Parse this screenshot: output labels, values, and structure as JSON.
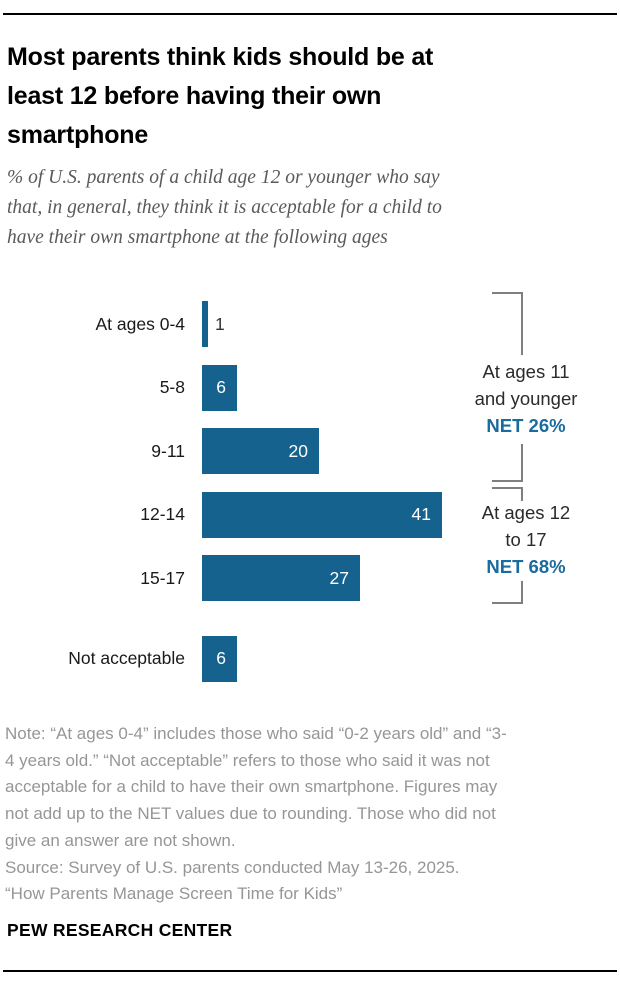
{
  "colors": {
    "bar_blue": "#15628E",
    "net_blue": "#1A6B9E",
    "bracket_gray": "#7f7f7f",
    "note_gray": "#969696"
  },
  "header": {
    "title_lines": [
      "Most parents think kids should be at",
      "least 12 before having their own",
      "smartphone"
    ],
    "subtitle_lines": [
      "% of U.S. parents of a child age 12 or younger who say",
      "that, in general, they think it is acceptable for a child to",
      "have their own smartphone at the following ages"
    ]
  },
  "chart_data": {
    "type": "bar",
    "orientation": "horizontal",
    "title": "Most parents think kids should be at least 12 before having their own smartphone",
    "subtitle": "% of U.S. parents of a child age 12 or younger who say that, in general, they think it is acceptable for a child to have their own smartphone at the following ages",
    "categories": [
      "At ages 0-4",
      "5-8",
      "9-11",
      "12-14",
      "15-17",
      "Not acceptable"
    ],
    "values": [
      1,
      6,
      20,
      41,
      27,
      6
    ],
    "value_unit": "%",
    "xlim": [
      0,
      45
    ],
    "grid": false,
    "value_labels_inside_bar": [
      false,
      true,
      true,
      true,
      true,
      true
    ],
    "annotations": [
      {
        "label_line1": "At ages 11",
        "label_line2": "and younger",
        "net_label": "NET 26%",
        "net_value": 26,
        "spans_categories": [
          "At ages 0-4",
          "5-8",
          "9-11"
        ]
      },
      {
        "label_line1": "At ages 12",
        "label_line2": "to 17",
        "net_label": "NET 68%",
        "net_value": 68,
        "spans_categories": [
          "12-14",
          "15-17"
        ]
      }
    ]
  },
  "footer": {
    "note_lines": [
      "Note: “At ages 0-4” includes those who said “0-2 years old” and “3-",
      "4 years old.” “Not acceptable” refers to those who said it was not",
      "acceptable for a child to have their own smartphone. Figures may",
      "not add up to the NET values due to rounding. Those who did not",
      "give an answer are not shown."
    ],
    "source_line": "Source: Survey of U.S. parents conducted May 13-26, 2025.",
    "report_line": "“How Parents Manage Screen Time for Kids”",
    "brand": "PEW RESEARCH CENTER"
  }
}
